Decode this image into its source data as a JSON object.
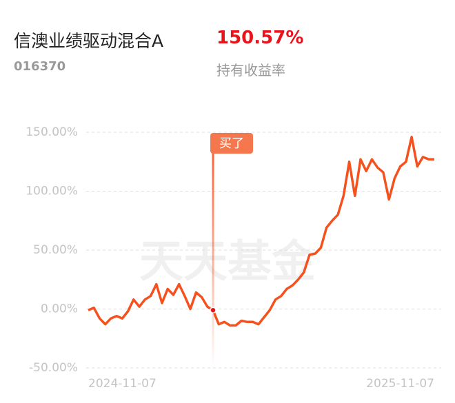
{
  "header": {
    "title": "信澳业绩驱动混合A",
    "code": "016370",
    "return": "150.57%",
    "return_label": "持有收益率"
  },
  "chart_data": {
    "type": "line",
    "watermark": "天天基金",
    "annotation": {
      "text": "买了",
      "index": 22
    },
    "categories": [
      "2024-11-07",
      null,
      null,
      null,
      null,
      null,
      null,
      null,
      null,
      null,
      null,
      null,
      null,
      null,
      null,
      null,
      null,
      null,
      null,
      null,
      null,
      null,
      null,
      null,
      null,
      null,
      null,
      null,
      null,
      null,
      null,
      null,
      null,
      null,
      null,
      null,
      null,
      null,
      null,
      null,
      null,
      null,
      null,
      null,
      null,
      null,
      null,
      null,
      null,
      null,
      null,
      null,
      null,
      null,
      null,
      null,
      null,
      null,
      null,
      null,
      null,
      "2025-11-07"
    ],
    "series": [
      {
        "name": "持有收益率",
        "color": "#f4511e",
        "values": [
          -1,
          1,
          -8,
          -13,
          -8,
          -6,
          -8,
          -2,
          8,
          2,
          8,
          11,
          21,
          5,
          17,
          12,
          21,
          11,
          0,
          14,
          10,
          2,
          -1,
          -13,
          -11,
          -14,
          -14,
          -10,
          -11,
          -11,
          -13,
          -7,
          -1,
          8,
          11,
          17,
          20,
          25,
          31,
          46,
          47,
          52,
          69,
          75,
          80,
          96,
          125,
          96,
          127,
          117,
          127,
          120,
          116,
          93,
          111,
          121,
          125,
          146,
          121,
          129,
          127,
          127
        ]
      }
    ],
    "ylim": [
      -50,
      150
    ],
    "yticks": [
      {
        "value": 150,
        "label": "150.00%"
      },
      {
        "value": 100,
        "label": "100.00%"
      },
      {
        "value": 50,
        "label": "50.00%"
      },
      {
        "value": 0,
        "label": "0.00%"
      },
      {
        "value": -50,
        "label": "-50.00%"
      }
    ],
    "grid": true
  }
}
